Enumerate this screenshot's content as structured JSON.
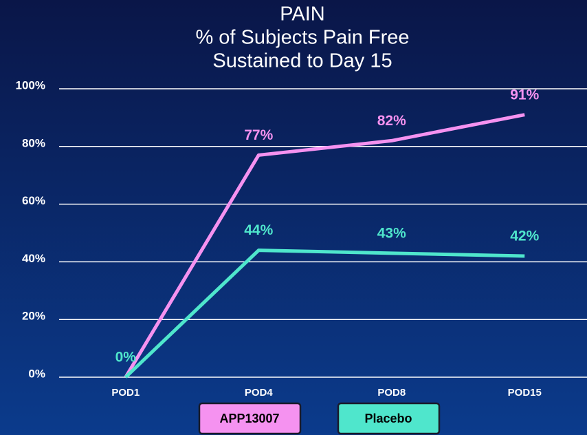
{
  "chart_data": {
    "type": "line",
    "title": [
      "PAIN",
      "% of Subjects Pain Free",
      "Sustained to Day 15"
    ],
    "categories": [
      "POD1",
      "POD4",
      "POD8",
      "POD15"
    ],
    "series": [
      {
        "name": "APP13007",
        "color": "#f592f0",
        "values": [
          0,
          77,
          82,
          91
        ],
        "value_labels": [
          null,
          "77%",
          "82%",
          "91%"
        ]
      },
      {
        "name": "Placebo",
        "color": "#4fe6cc",
        "values": [
          0,
          44,
          43,
          42
        ],
        "value_labels": [
          "0%",
          "44%",
          "43%",
          "42%"
        ]
      }
    ],
    "ylim": [
      0,
      100
    ],
    "yticks": [
      {
        "value": 0,
        "label": "0%"
      },
      {
        "value": 20,
        "label": "20%"
      },
      {
        "value": 40,
        "label": "40%"
      },
      {
        "value": 60,
        "label": "60%"
      },
      {
        "value": 80,
        "label": "80%"
      },
      {
        "value": 100,
        "label": "100%"
      }
    ],
    "grid": true,
    "legend": "bottom"
  }
}
